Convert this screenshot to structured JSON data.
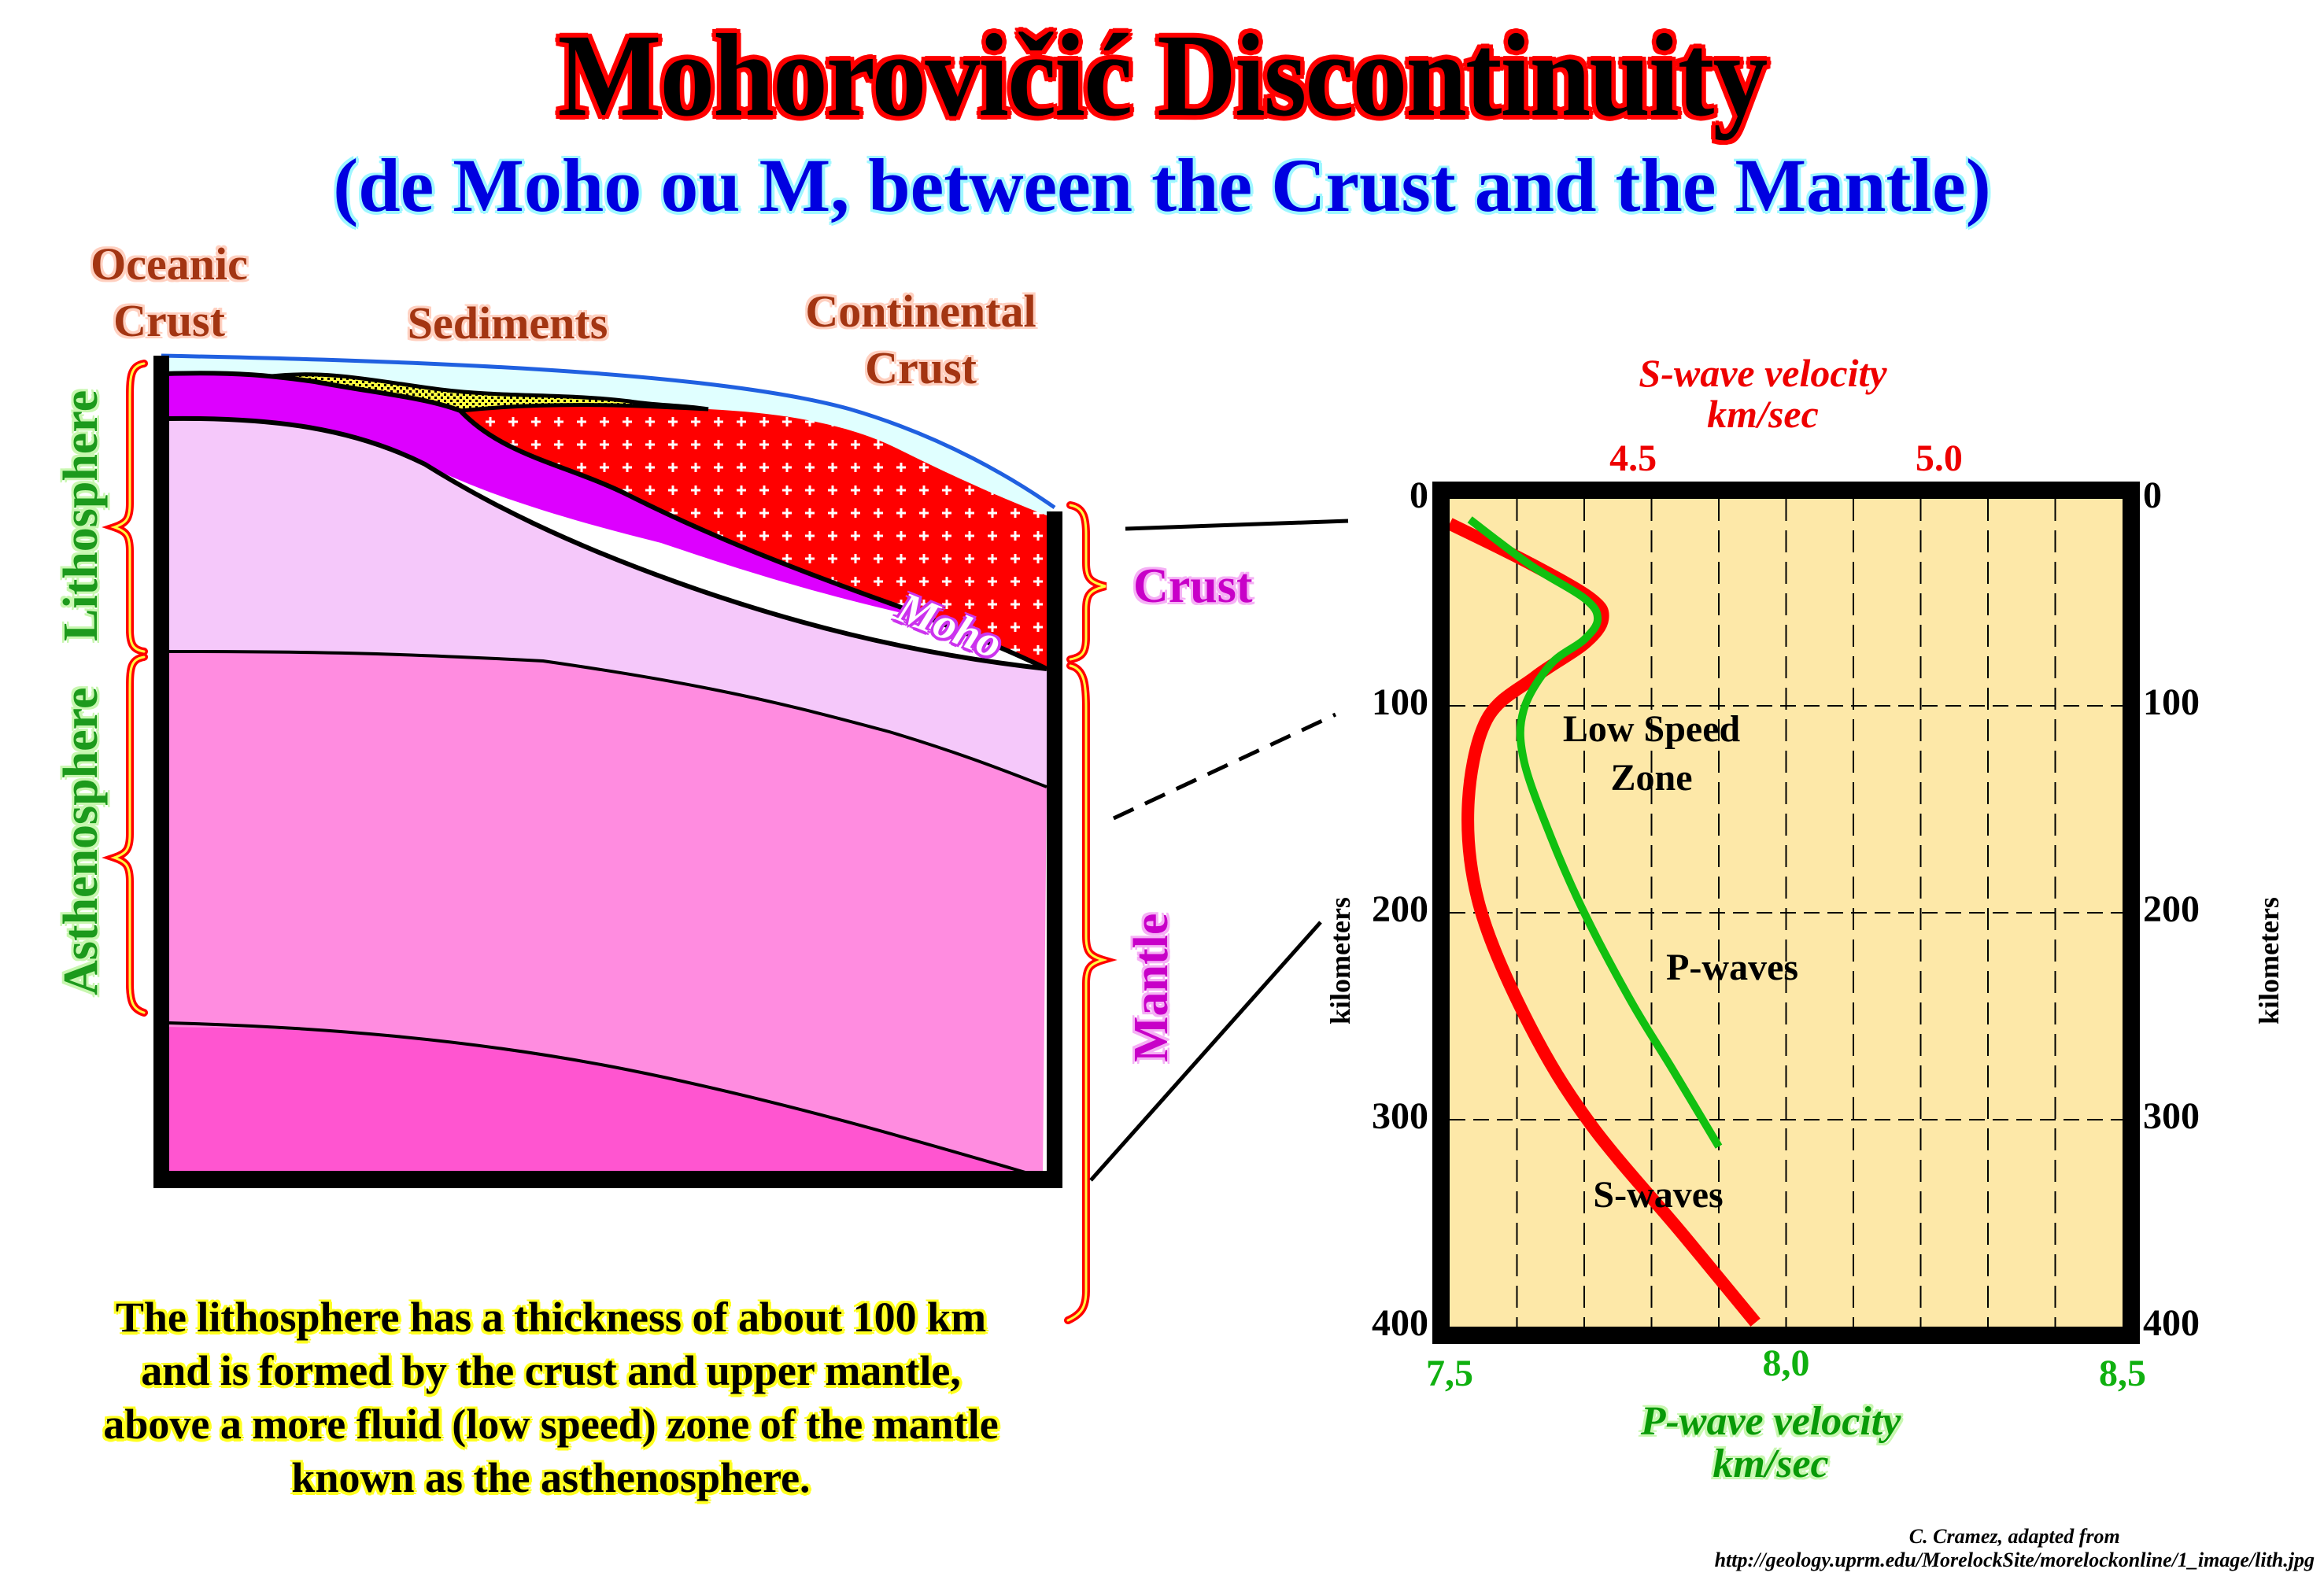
{
  "title": "Mohorovičić Discontinuity",
  "subtitle": "(de Moho ou M, between the Crust and the Mantle)",
  "cross_section": {
    "labels": {
      "oceanic_crust": [
        "Oceanic",
        "Crust"
      ],
      "sediments": "Sediments",
      "continental_crust": [
        "Continental",
        "Crust"
      ],
      "moho": "Moho",
      "lithosphere": "Lithosphere",
      "asthenosphere": "Asthenosphere",
      "crust": "Crust",
      "mantle": "Mantle"
    },
    "colors": {
      "ocean": "#e0ffff",
      "sea_surface": "#2060e0",
      "oceanic_crust": "#dd00ff",
      "sediments": "#ffff40",
      "continental_crust": "#ff0000",
      "upper_mantle": "#f5c8fa",
      "asthenosphere": "#ff8ce0",
      "deep_mantle": "#ff55d0"
    }
  },
  "caption": [
    "The lithosphere has a thickness of about 100 km",
    "and is formed by the crust and upper mantle,",
    "above a more fluid (low speed) zone of the mantle",
    "known as the asthenosphere."
  ],
  "credit": [
    "C. Cramez, adapted from",
    "http://geology.uprm.edu/MorelockSite/morelockonline/1_image/lith.jpg"
  ],
  "chart_data": {
    "type": "line",
    "title": "",
    "top_axis": {
      "label": [
        "S-wave velocity",
        "km/sec"
      ],
      "ticks": [
        4.5,
        5.0
      ],
      "tick_labels": [
        "4.5",
        "5.0"
      ],
      "range": [
        4.2,
        5.3
      ],
      "color": "#ee0000"
    },
    "bottom_axis": {
      "label": [
        "P-wave velocity",
        "km/sec"
      ],
      "ticks": [
        7.5,
        8.0,
        8.5
      ],
      "tick_labels": [
        "7,5",
        "8,0",
        "8,5"
      ],
      "range": [
        7.5,
        8.5
      ],
      "color": "#10b010"
    },
    "y_axis": {
      "label": "kilometers",
      "ticks": [
        0,
        100,
        200,
        300,
        400
      ],
      "tick_labels": [
        "0",
        "100",
        "200",
        "300",
        "400"
      ],
      "range": [
        0,
        400
      ],
      "inverted": true
    },
    "grid": {
      "vertical_divisions": 10,
      "horizontal_lines": [
        100,
        200,
        300
      ],
      "style": "dashed"
    },
    "background": "#fde8a8",
    "series": [
      {
        "name": "S-waves",
        "axis": "top",
        "color": "#ff0000",
        "depth_km": [
          12,
          31,
          48,
          58,
          70,
          86,
          107,
          150,
          198,
          254,
          302,
          355,
          398
        ],
        "velocity": [
          4.2,
          4.33,
          4.43,
          4.45,
          4.42,
          4.34,
          4.26,
          4.23,
          4.25,
          4.33,
          4.43,
          4.58,
          4.7
        ]
      },
      {
        "name": "P-waves",
        "axis": "bottom",
        "color": "#10c010",
        "depth_km": [
          10,
          32,
          48,
          58,
          68,
          80,
          102,
          126,
          163,
          200,
          243,
          275,
          313
        ],
        "velocity": [
          7.53,
          7.62,
          7.7,
          7.72,
          7.7,
          7.65,
          7.61,
          7.61,
          7.65,
          7.7,
          7.77,
          7.83,
          7.9
        ]
      }
    ],
    "annotations": [
      {
        "text": [
          "Low Speed",
          "Zone"
        ],
        "depth_km": 115,
        "p_velocity": 7.8
      },
      {
        "text": [
          "P-waves"
        ],
        "depth_km": 230,
        "p_velocity": 7.92
      },
      {
        "text": [
          "S-waves"
        ],
        "depth_km": 340,
        "p_velocity": 7.81
      }
    ]
  }
}
